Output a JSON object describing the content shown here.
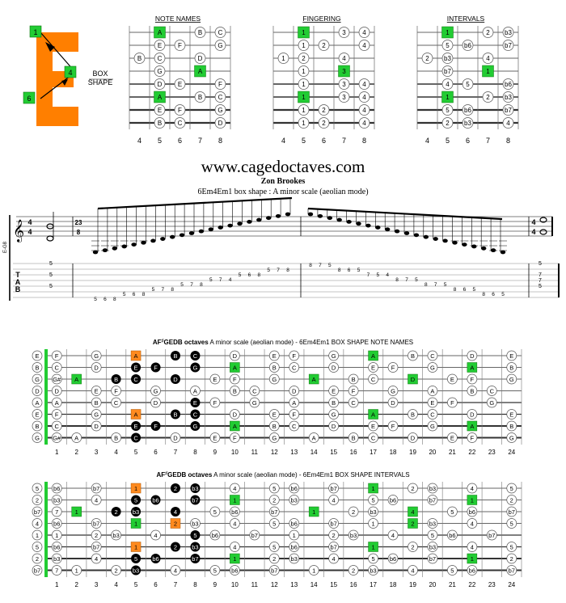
{
  "logo": {
    "letter": "E",
    "color": "#ff7f00",
    "markers": [
      "1",
      "4",
      "6"
    ],
    "box_label": "BOX",
    "shape_label": "SHAPE"
  },
  "mini_panels": [
    {
      "title": "NOTE NAMES"
    },
    {
      "title": "FINGERING"
    },
    {
      "title": "INTERVALS"
    }
  ],
  "mini_fret_numbers": [
    "4",
    "5",
    "6",
    "7",
    "8"
  ],
  "mini_data": {
    "note_names": [
      [
        [
          2,
          "A",
          "g"
        ],
        [
          4,
          "B",
          "w"
        ],
        [
          5,
          "C",
          "w"
        ]
      ],
      [
        [
          2,
          "E",
          "w"
        ],
        [
          3,
          "F",
          "w"
        ],
        [
          5,
          "G",
          "w"
        ]
      ],
      [
        [
          1,
          "B",
          "w"
        ],
        [
          2,
          "C",
          "w"
        ],
        [
          4,
          "D",
          "w"
        ]
      ],
      [
        [
          2,
          "G",
          "w"
        ],
        [
          4,
          "A",
          "g"
        ]
      ],
      [
        [
          2,
          "D",
          "w"
        ],
        [
          3,
          "E",
          "w"
        ],
        [
          5,
          "F",
          "w"
        ]
      ],
      [
        [
          2,
          "A",
          "g"
        ],
        [
          4,
          "B",
          "w"
        ],
        [
          5,
          "C",
          "w"
        ]
      ],
      [
        [
          2,
          "E",
          "w"
        ],
        [
          3,
          "F",
          "w"
        ],
        [
          5,
          "G",
          "w"
        ]
      ],
      [
        [
          2,
          "B",
          "w"
        ],
        [
          3,
          "C",
          "w"
        ],
        [
          5,
          "D",
          "w"
        ]
      ]
    ],
    "fingering": [
      [
        [
          2,
          "1",
          "g"
        ],
        [
          4,
          "3",
          "w"
        ],
        [
          5,
          "4",
          "w"
        ]
      ],
      [
        [
          2,
          "1",
          "w"
        ],
        [
          3,
          "2",
          "w"
        ],
        [
          5,
          "4",
          "w"
        ]
      ],
      [
        [
          1,
          "1",
          "w"
        ],
        [
          2,
          "2",
          "w"
        ],
        [
          4,
          "4",
          "w"
        ]
      ],
      [
        [
          2,
          "1",
          "w"
        ],
        [
          4,
          "3",
          "g"
        ]
      ],
      [
        [
          2,
          "1",
          "w"
        ],
        [
          4,
          "3",
          "w"
        ],
        [
          5,
          "4",
          "w"
        ]
      ],
      [
        [
          2,
          "1",
          "g"
        ],
        [
          4,
          "3",
          "w"
        ],
        [
          5,
          "4",
          "w"
        ]
      ],
      [
        [
          2,
          "1",
          "w"
        ],
        [
          3,
          "2",
          "w"
        ],
        [
          5,
          "4",
          "w"
        ]
      ],
      [
        [
          2,
          "1",
          "w"
        ],
        [
          3,
          "2",
          "w"
        ],
        [
          5,
          "4",
          "w"
        ]
      ]
    ],
    "intervals": [
      [
        [
          2,
          "1",
          "g"
        ],
        [
          4,
          "2",
          "w"
        ],
        [
          5,
          "b3",
          "w"
        ]
      ],
      [
        [
          2,
          "5",
          "w"
        ],
        [
          3,
          "b6",
          "w"
        ],
        [
          5,
          "b7",
          "w"
        ]
      ],
      [
        [
          1,
          "2",
          "w"
        ],
        [
          2,
          "b3",
          "w"
        ],
        [
          4,
          "4",
          "w"
        ]
      ],
      [
        [
          2,
          "b7",
          "w"
        ],
        [
          4,
          "1",
          "g"
        ]
      ],
      [
        [
          2,
          "4",
          "w"
        ],
        [
          3,
          "5",
          "w"
        ],
        [
          5,
          "b6",
          "w"
        ]
      ],
      [
        [
          2,
          "1",
          "g"
        ],
        [
          4,
          "2",
          "w"
        ],
        [
          5,
          "b3",
          "w"
        ]
      ],
      [
        [
          2,
          "5",
          "w"
        ],
        [
          3,
          "b6",
          "w"
        ],
        [
          5,
          "b7",
          "w"
        ]
      ],
      [
        [
          2,
          "2",
          "w"
        ],
        [
          3,
          "b3",
          "w"
        ],
        [
          5,
          "4",
          "w"
        ]
      ]
    ]
  },
  "site": {
    "url": "www.cagedoctaves.com",
    "author": "Zon Brookes",
    "subtitle": "6Em4Em1 box shape : A minor scale (aeolian mode)"
  },
  "notation": {
    "tuning_label": "E-G8",
    "time_sig_top": "4",
    "time_sig_bottom": "4",
    "tuplet_top": "23",
    "tuplet_bottom": "8",
    "tab_letters": [
      "T",
      "A",
      "B"
    ],
    "first_chord": [
      "5",
      "5",
      "5"
    ],
    "last_chord": [
      "5",
      "7",
      "7",
      "5"
    ],
    "ascending": [
      [
        "8",
        "5"
      ],
      [
        "6",
        "5"
      ],
      [
        "8",
        "5"
      ],
      [
        "6",
        "5"
      ],
      [
        "8",
        "7",
        "5"
      ],
      [
        "8",
        "7",
        "5"
      ],
      [
        "7",
        "5",
        "4"
      ],
      [
        "8",
        "6",
        "5"
      ],
      [
        "8",
        "7",
        "5"
      ]
    ],
    "ascending_strings": [
      8,
      8,
      8,
      7,
      7,
      7,
      6,
      6,
      6,
      5,
      5,
      5,
      4,
      4,
      4,
      3,
      3,
      3,
      2,
      2,
      2,
      1,
      1,
      1
    ],
    "asc_frets": [
      "5",
      "6",
      "8",
      "5",
      "6",
      "8",
      "5",
      "7",
      "8",
      "5",
      "7",
      "8",
      "5",
      "7",
      "4",
      "5",
      "6",
      "8",
      "5",
      "7",
      "8"
    ],
    "desc_frets": [
      "8",
      "7",
      "5",
      "8",
      "6",
      "5",
      "7",
      "5",
      "4",
      "8",
      "7",
      "5",
      "8",
      "7",
      "5",
      "8",
      "6",
      "5",
      "8",
      "6",
      "5"
    ]
  },
  "big_fret_numbers": [
    "1",
    "2",
    "3",
    "4",
    "5",
    "6",
    "7",
    "8",
    "9",
    "10",
    "11",
    "12",
    "13",
    "14",
    "15",
    "16",
    "17",
    "18",
    "19",
    "20",
    "21",
    "22",
    "23",
    "24"
  ],
  "big_panels": [
    {
      "prefix": "AF",
      "sharp": "♯",
      "suffix": "GEDB octaves",
      "rest": " A minor scale (aeolian mode) - 6Em4Em1 BOX SHAPE NOTE NAMES"
    },
    {
      "prefix": "AF",
      "sharp": "♯",
      "suffix": "GEDB octaves",
      "rest": " A minor scale (aeolian mode) - 6Em4Em1 BOX SHAPE  INTERVALS"
    }
  ],
  "open_strings_notes": [
    "E",
    "B",
    "G",
    "D",
    "A",
    "E",
    "B",
    "G"
  ],
  "open_strings_intervals": [
    "5",
    "2",
    "b7",
    "4",
    "1",
    "5",
    "2",
    "b7"
  ],
  "big_notes_rows": [
    "F . G . A . B C . D . E F . G . A . B C . D . E",
    "C . D . E F . G . A . B C . D . E F . G . A . B",
    "G# A . B C . D . E F . G . A . B C . D . E F . G",
    "D . E F . G . A . B C . D . E F . G . A . B C . D",
    "A . B C . D . E F . G . A . B C . D . E F . G . A",
    "F . G . A . B C . D . E F . G . A . B C . D . E",
    "C . D . E F . G . A . B C . D . E F . G . A . B",
    "G# A . B C . D . E F . G . A . B C . D . E F . G"
  ],
  "big_intervals_rows": [
    "b6 . b7 . 1 . 2 b3 . 4 . 5 b6 . b7 . 1 . 2 b3 . 4 . 5",
    "b3 . 4 . 5 b6 . b7 . 1 . 2 b3 . 4 . 5 b6 . b7 . 1 . 2",
    "7 1 . 2 b3 . 4 . 5 b6 . b7 . 1 . 2 b3 . 4 . 5 b6 . b7",
    "b6 . b7 . 1 . 2 b3 . 4 . 5 b6 . b7 . 1 . 2 b3 . 4 . 5",
    "1 . 2 b3 . 4 . 5 b6 . b7 . 1 . 2 b3 . 4 . 5 b6 . b7 . 1",
    "b6 . b7 . 1 . 2 b3 . 4 . 5 b6 . b7 . 1 . 2 b3 . 4 . 5",
    "b3 . 4 . 5 b6 . b7 . 1 . 2 b3 . 4 . 5 b6 . b7 . 1 . 2",
    "7 1 . 2 b3 . 4 . 5 b6 . b7 . 1 . 2 b3 . 4 . 5 b6 . b7"
  ],
  "colors": {
    "green": "#22cc33",
    "orange": "#ff8a1f",
    "black": "#000000",
    "line": "#555555"
  }
}
